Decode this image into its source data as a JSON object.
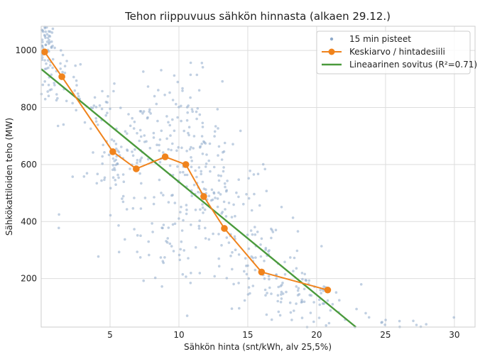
{
  "chart_data": {
    "type": "scatter",
    "title": "Tehon riippuvuus sähkön hinnasta (alkaen 29.12.)",
    "xlabel": "Sähkön hinta (snt/kWh, alv 25,5%)",
    "ylabel": "Sähkökattiloiden teho (MW)",
    "xlim": [
      0,
      31.5
    ],
    "ylim": [
      30,
      1085
    ],
    "xticks": [
      5,
      10,
      15,
      20,
      25,
      30
    ],
    "yticks": [
      200,
      400,
      600,
      800,
      1000
    ],
    "grid": true,
    "legend_position": "top-right",
    "colors": {
      "scatter": "#8eaacb",
      "mean": "#f0831c",
      "fit": "#4a9a3c",
      "grid": "#dddddd",
      "frame": "#cccccc"
    },
    "legend": {
      "scatter_label": "15 min pisteet",
      "mean_label": "Keskiarvo / hintadesiili",
      "fit_label": "Lineaarinen sovitus (R²=0.71)"
    },
    "scatter_clusters": [
      {
        "cx": 0.4,
        "cy": 1040,
        "sx": 0.4,
        "sy": 40,
        "n": 55
      },
      {
        "cx": 0.3,
        "cy": 920,
        "sx": 0.3,
        "sy": 60,
        "n": 25
      },
      {
        "cx": 1.5,
        "cy": 900,
        "sx": 0.9,
        "sy": 60,
        "n": 25
      },
      {
        "cx": 3.5,
        "cy": 810,
        "sx": 1.2,
        "sy": 50,
        "n": 30
      },
      {
        "cx": 5.5,
        "cy": 620,
        "sx": 1.0,
        "sy": 60,
        "n": 40
      },
      {
        "cx": 7.5,
        "cy": 700,
        "sx": 1.5,
        "sy": 100,
        "n": 60
      },
      {
        "cx": 10.5,
        "cy": 700,
        "sx": 1.3,
        "sy": 110,
        "n": 90
      },
      {
        "cx": 12.0,
        "cy": 500,
        "sx": 1.2,
        "sy": 110,
        "n": 60
      },
      {
        "cx": 14.0,
        "cy": 400,
        "sx": 1.5,
        "sy": 130,
        "n": 60
      },
      {
        "cx": 16.5,
        "cy": 260,
        "sx": 1.6,
        "sy": 80,
        "n": 60
      },
      {
        "cx": 18.5,
        "cy": 140,
        "sx": 1.5,
        "sy": 50,
        "n": 60
      },
      {
        "cx": 6.5,
        "cy": 420,
        "sx": 2.5,
        "sy": 120,
        "n": 40
      },
      {
        "cx": 9.5,
        "cy": 280,
        "sx": 2.5,
        "sy": 110,
        "n": 30
      },
      {
        "cx": 21.0,
        "cy": 110,
        "sx": 1.2,
        "sy": 50,
        "n": 15
      },
      {
        "cx": 26.5,
        "cy": 50,
        "sx": 3.0,
        "sy": 15,
        "n": 14
      }
    ],
    "mean_points": [
      {
        "x": 0.25,
        "y": 995
      },
      {
        "x": 1.5,
        "y": 908
      },
      {
        "x": 5.2,
        "y": 645
      },
      {
        "x": 6.9,
        "y": 585
      },
      {
        "x": 9.0,
        "y": 627
      },
      {
        "x": 10.5,
        "y": 600
      },
      {
        "x": 11.8,
        "y": 488
      },
      {
        "x": 13.3,
        "y": 376
      },
      {
        "x": 16.0,
        "y": 223
      },
      {
        "x": 20.8,
        "y": 160
      }
    ],
    "fit_line": [
      {
        "x": 0,
        "y": 935
      },
      {
        "x": 22.85,
        "y": 30
      }
    ]
  }
}
